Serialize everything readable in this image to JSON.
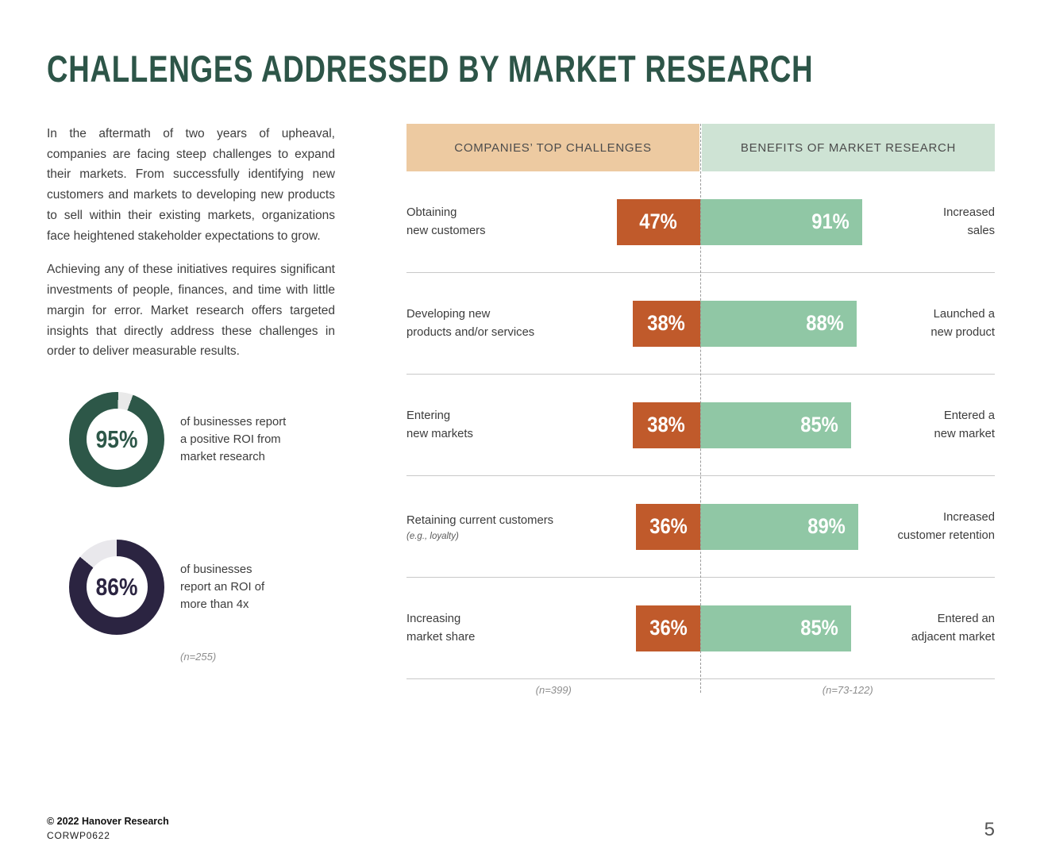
{
  "page": {
    "title": "CHALLENGES ADDRESSED BY MARKET RESEARCH",
    "footer": {
      "copyright": "© 2022 Hanover Research",
      "code": "CORWP0622",
      "page_number": "5"
    }
  },
  "intro": {
    "paragraph1": "In the aftermath of two years of upheaval, companies are facing steep challenges to expand their markets. From successfully identifying new customers and markets to developing new products to sell within their existing markets, organizations face heightened stakeholder expectations to grow.",
    "paragraph2": "Achieving any of these initiatives requires significant investments of people, finances, and time with little margin for error. Market research offers targeted insights that directly address these challenges in order to deliver measurable results."
  },
  "colors": {
    "title": "#2d5548",
    "challenge_bar": "#c05a2b",
    "benefit_bar": "#90c7a5",
    "left_header_bg": "#edcaa1",
    "right_header_bg": "#cee3d4"
  },
  "donuts": [
    {
      "pct": 95,
      "display": "95%",
      "ring_color": "#2d5748",
      "track_color": "#e9e9e9",
      "caption": "of businesses report\na positive ROI from\nmarket research"
    },
    {
      "pct": 86,
      "display": "86%",
      "ring_color": "#2b2441",
      "track_color": "#e9e8ec",
      "caption": "of businesses\nreport an ROI of\nmore than 4x"
    }
  ],
  "donut_note": "(n=255)",
  "chart_data": {
    "type": "bar",
    "layout": "paired-horizontal-diverging",
    "left_header": "COMPANIES’ TOP CHALLENGES",
    "right_header": "BENEFITS OF MARKET RESEARCH",
    "xlim": [
      0,
      100
    ],
    "rows": [
      {
        "challenge": "Obtaining\nnew customers",
        "challenge_sub": "",
        "challenge_pct": 47,
        "benefit_pct": 91,
        "benefit": "Increased\nsales"
      },
      {
        "challenge": "Developing new\nproducts and/or services",
        "challenge_sub": "",
        "challenge_pct": 38,
        "benefit_pct": 88,
        "benefit": "Launched a\nnew product"
      },
      {
        "challenge": "Entering\nnew markets",
        "challenge_sub": "",
        "challenge_pct": 38,
        "benefit_pct": 85,
        "benefit": "Entered a\nnew market"
      },
      {
        "challenge": "Retaining current customers",
        "challenge_sub": "(e.g., loyalty)",
        "challenge_pct": 36,
        "benefit_pct": 89,
        "benefit": "Increased\ncustomer retention"
      },
      {
        "challenge": "Increasing\nmarket share",
        "challenge_sub": "",
        "challenge_pct": 36,
        "benefit_pct": 85,
        "benefit": "Entered an\nadjacent market"
      }
    ],
    "left_note": "(n=399)",
    "right_note": "(n=73-122)"
  }
}
